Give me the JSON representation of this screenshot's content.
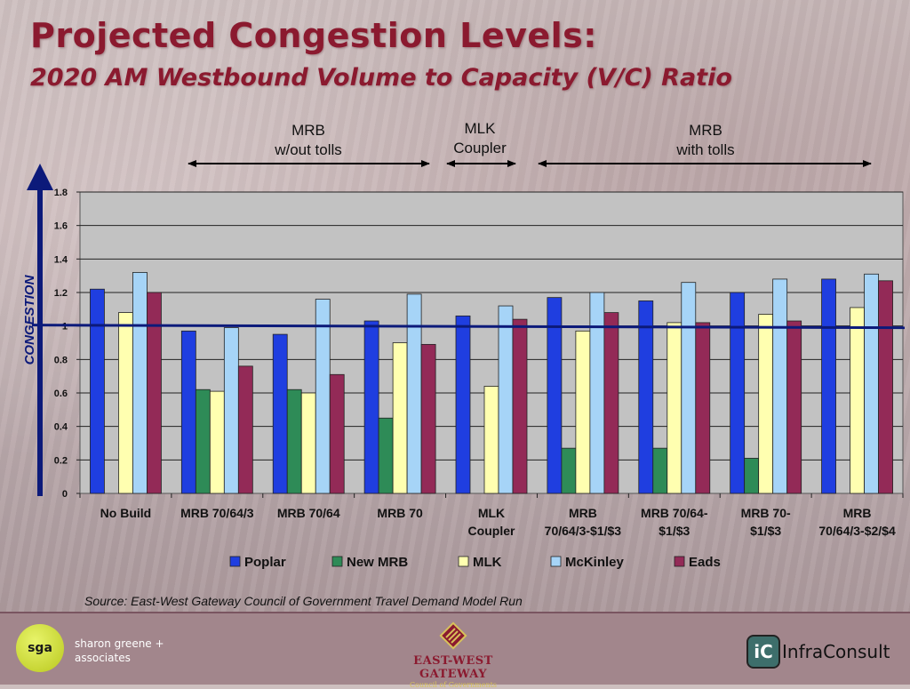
{
  "header": {
    "title": "Projected Congestion Levels:",
    "subtitle": "2020 AM Westbound Volume to Capacity (V/C) Ratio"
  },
  "groups": [
    {
      "line1": "MRB",
      "line2": "w/out tolls"
    },
    {
      "line1": "MLK",
      "line2": "Coupler"
    },
    {
      "line1": "MRB",
      "line2": "with tolls"
    }
  ],
  "axis_side_label": "CONGESTION",
  "source": "Source: East-West Gateway Council of Government Travel Demand Model Run",
  "footer": {
    "sga_logo": "sga",
    "sga_line1": "sharon greene +",
    "sga_line2": "associates",
    "ewg_name": "EAST-WEST GATEWAY",
    "ewg_sub": "Council of Governments",
    "infra_mark": "iC",
    "infra_name": "InfraConsult"
  },
  "colors": {
    "Poplar": "#1f3ee0",
    "New MRB": "#2e8b57",
    "MLK": "#ffffb0",
    "McKinley": "#a6d4f7",
    "Eads": "#932a57",
    "threshold": "#0c1a7a",
    "plot_bg": "#c2c2c2"
  },
  "chart_data": {
    "type": "bar",
    "categories": [
      [
        "No Build"
      ],
      [
        "MRB 70/64/3"
      ],
      [
        "MRB 70/64"
      ],
      [
        "MRB 70"
      ],
      [
        "MLK",
        "Coupler"
      ],
      [
        "MRB",
        "70/64/3-$1/$3"
      ],
      [
        "MRB 70/64-",
        "$1/$3"
      ],
      [
        "MRB 70-",
        "$1/$3"
      ],
      [
        "MRB",
        "70/64/3-$2/$4"
      ]
    ],
    "series": [
      {
        "name": "Poplar",
        "values": [
          1.22,
          0.97,
          0.95,
          1.03,
          1.06,
          1.17,
          1.15,
          1.2,
          1.28
        ]
      },
      {
        "name": "New MRB",
        "values": [
          null,
          0.62,
          0.62,
          0.45,
          null,
          0.27,
          0.27,
          0.21,
          null
        ]
      },
      {
        "name": "MLK",
        "values": [
          1.08,
          0.61,
          0.6,
          0.9,
          0.64,
          0.97,
          1.02,
          1.07,
          1.11
        ]
      },
      {
        "name": "McKinley",
        "values": [
          1.32,
          0.99,
          1.16,
          1.19,
          1.12,
          1.2,
          1.26,
          1.28,
          1.31
        ]
      },
      {
        "name": "Eads",
        "values": [
          1.2,
          0.76,
          0.71,
          0.89,
          1.04,
          1.08,
          1.02,
          1.03,
          1.27
        ]
      }
    ],
    "y_ticks": [
      "0",
      "0.2",
      "0.4",
      "0.6",
      "0.8",
      "1",
      "1.2",
      "1.4",
      "1.6",
      "1.8"
    ],
    "ylim": [
      0,
      1.8
    ],
    "threshold": 1,
    "grid": true,
    "legend": "bottom"
  }
}
